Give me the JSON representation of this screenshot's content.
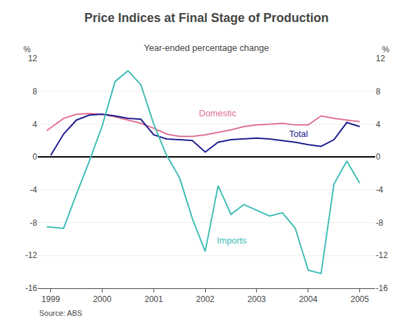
{
  "chart_data": {
    "type": "line",
    "title": "Price Indices at Final Stage of Production",
    "subtitle": "Year-ended percentage change",
    "source": "Source: ABS",
    "ylabel": "%",
    "y2label": "%",
    "xlim": [
      1998.75,
      2005.3
    ],
    "xticks": [
      1999,
      2000,
      2001,
      2002,
      2003,
      2004,
      2005
    ],
    "ylim": [
      -16,
      12
    ],
    "yticks": [
      -16,
      -12,
      -8,
      -4,
      0,
      4,
      8,
      12
    ],
    "y2lim": [
      -16,
      12
    ],
    "y2ticks": [
      -16,
      -12,
      -8,
      -4,
      0,
      4,
      8,
      12
    ],
    "grid": true,
    "series": [
      {
        "name": "Domestic",
        "color": "#e07090",
        "x": [
          1998.92,
          1999.25,
          1999.5,
          1999.75,
          2000.0,
          2000.25,
          2000.5,
          2000.75,
          2001.0,
          2001.25,
          2001.5,
          2001.75,
          2002.0,
          2002.25,
          2002.5,
          2002.75,
          2003.0,
          2003.25,
          2003.5,
          2003.75,
          2004.0,
          2004.25,
          2004.5,
          2004.75,
          2005.0
        ],
        "values": [
          3.2,
          4.7,
          5.2,
          5.3,
          5.2,
          4.9,
          4.5,
          4.1,
          3.5,
          2.8,
          2.5,
          2.5,
          2.7,
          3.0,
          3.3,
          3.7,
          3.9,
          4.0,
          4.1,
          3.9,
          3.9,
          5.0,
          4.7,
          4.5,
          4.3
        ]
      },
      {
        "name": "Total",
        "color": "#1a1a8c",
        "x": [
          1999.0,
          1999.25,
          1999.5,
          1999.75,
          2000.0,
          2000.25,
          2000.5,
          2000.75,
          2001.0,
          2001.25,
          2001.5,
          2001.75,
          2002.0,
          2002.25,
          2002.5,
          2002.75,
          2003.0,
          2003.25,
          2003.5,
          2003.75,
          2004.0,
          2004.25,
          2004.5,
          2004.75,
          2005.0
        ],
        "values": [
          0.2,
          2.8,
          4.5,
          5.1,
          5.2,
          5.0,
          4.7,
          4.6,
          2.7,
          2.2,
          2.1,
          2.0,
          0.6,
          1.8,
          2.1,
          2.2,
          2.3,
          2.2,
          2.0,
          1.8,
          1.5,
          1.3,
          2.1,
          4.2,
          3.7
        ]
      },
      {
        "name": "Imports",
        "color": "#3cbcb4",
        "x": [
          1998.92,
          1999.25,
          1999.5,
          1999.75,
          2000.0,
          2000.25,
          2000.5,
          2000.75,
          2001.0,
          2001.25,
          2001.5,
          2001.75,
          2002.0,
          2002.25,
          2002.5,
          2002.75,
          2003.0,
          2003.25,
          2003.5,
          2003.75,
          2004.0,
          2004.25,
          2004.5,
          2004.75,
          2005.0
        ],
        "values": [
          -8.5,
          -8.7,
          -4.5,
          -0.5,
          3.8,
          9.2,
          10.5,
          8.8,
          4.0,
          0.2,
          -2.5,
          -7.5,
          -11.5,
          -3.5,
          -7.0,
          -5.8,
          -6.5,
          -7.2,
          -6.8,
          -8.7,
          -13.8,
          -14.2,
          -3.3,
          -0.5,
          -3.2
        ]
      }
    ],
    "annotations": [
      {
        "text": "Domestic",
        "x": 2001.85,
        "y": 4.5,
        "color": "#e07090"
      },
      {
        "text": "Total",
        "x": 2003.6,
        "y": 2.0,
        "color": "#1a1a8c"
      },
      {
        "text": "Imports",
        "x": 2002.2,
        "y": -11.0,
        "color": "#3cbcb4"
      }
    ]
  }
}
